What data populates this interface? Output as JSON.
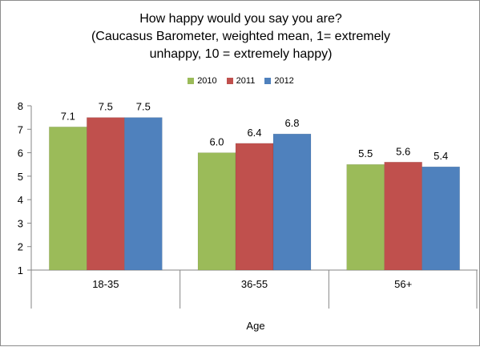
{
  "chart_data": {
    "type": "bar",
    "title_lines": [
      "How happy would you say you are?",
      "(Caucasus Barometer, weighted mean, 1= extremely",
      "unhappy, 10 = extremely happy)"
    ],
    "xlabel": "Age",
    "ylabel": "",
    "categories": [
      "18-35",
      "36-55",
      "56+"
    ],
    "series": [
      {
        "name": "2010",
        "color": "#9bbb59",
        "values": [
          7.1,
          6.0,
          5.5
        ]
      },
      {
        "name": "2011",
        "color": "#c0504d",
        "values": [
          7.5,
          6.4,
          5.6
        ]
      },
      {
        "name": "2012",
        "color": "#4f81bd",
        "values": [
          7.5,
          6.8,
          5.4
        ]
      }
    ],
    "ylim": [
      1,
      8
    ],
    "yticks": [
      "1",
      "2",
      "3",
      "4",
      "5",
      "6",
      "7",
      "8"
    ],
    "legend_position": "top",
    "grid": false
  }
}
